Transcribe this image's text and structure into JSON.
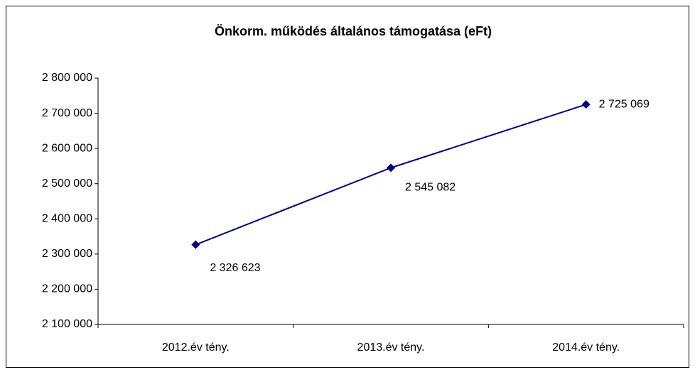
{
  "chart_data": {
    "type": "line",
    "title": "Önkorm. működés általános támogatása (eFt)",
    "categories": [
      "2012.év tény.",
      "2013.év tény.",
      "2014.év tény."
    ],
    "series": [
      {
        "name": "Önkorm. működés általános támogatása (eFt)",
        "color": "#000080",
        "values": [
          2326623,
          2545082,
          2725069
        ],
        "value_labels": [
          "2 326 623",
          "2 545 082",
          "2 725 069"
        ]
      }
    ],
    "ylim": [
      2100000,
      2800000
    ],
    "yticks": [
      {
        "value": 2100000,
        "label": "2 100 000"
      },
      {
        "value": 2200000,
        "label": "2 200 000"
      },
      {
        "value": 2300000,
        "label": "2 300 000"
      },
      {
        "value": 2400000,
        "label": "2 400 000"
      },
      {
        "value": 2500000,
        "label": "2 500 000"
      },
      {
        "value": 2600000,
        "label": "2 600 000"
      },
      {
        "value": 2700000,
        "label": "2 700 000"
      },
      {
        "value": 2800000,
        "label": "2 800 000"
      }
    ],
    "grid": false
  }
}
